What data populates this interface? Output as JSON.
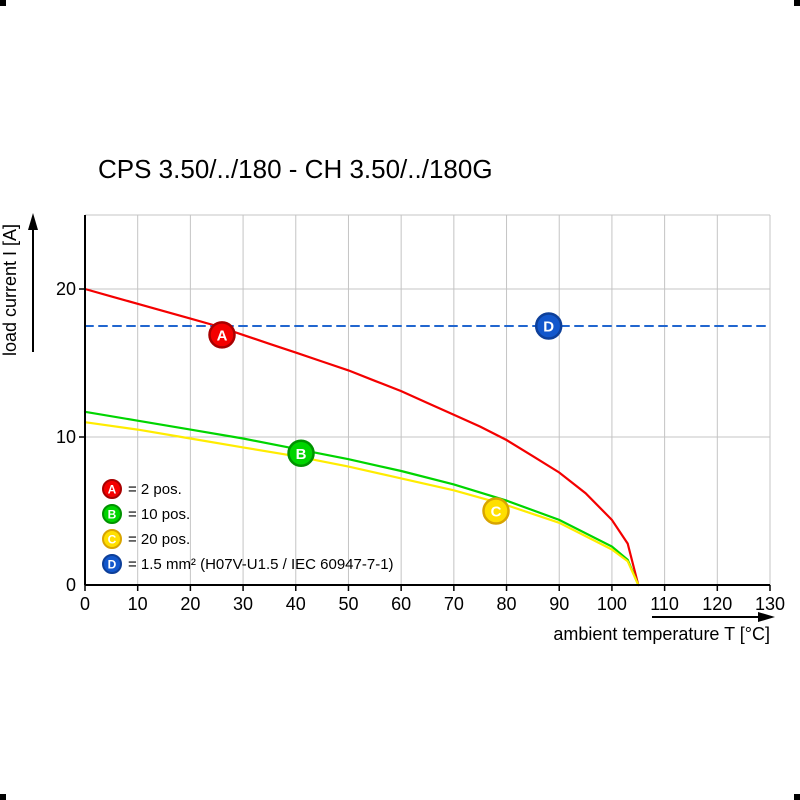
{
  "title": "CPS 3.50/../180 - CH 3.50/../180G",
  "chart_data": {
    "type": "line",
    "title": "CPS 3.50/../180 - CH 3.50/../180G",
    "xlabel": "ambient temperature T [°C]",
    "ylabel": "load current I [A]",
    "xlim": [
      0,
      130
    ],
    "ylim": [
      0,
      25
    ],
    "x_ticks": [
      0,
      10,
      20,
      30,
      40,
      50,
      60,
      70,
      80,
      90,
      100,
      110,
      120,
      130
    ],
    "y_ticks": [
      0,
      10,
      20
    ],
    "y_gridlines": [
      10,
      20,
      25
    ],
    "grid": true,
    "legend_position": "bottom-left-inside",
    "series": [
      {
        "name": "A",
        "label": "= 2 pos.",
        "color": "#f40000",
        "line_style": "solid",
        "marker_fill": "#f40000",
        "marker_stroke": "#a80000",
        "marker_at": {
          "x": 26,
          "y": 16.9
        },
        "points": [
          [
            0,
            20
          ],
          [
            5,
            19.5
          ],
          [
            10,
            19.0
          ],
          [
            15,
            18.5
          ],
          [
            20,
            18.0
          ],
          [
            25,
            17.5
          ],
          [
            30,
            16.9
          ],
          [
            35,
            16.3
          ],
          [
            40,
            15.7
          ],
          [
            45,
            15.1
          ],
          [
            50,
            14.5
          ],
          [
            55,
            13.8
          ],
          [
            60,
            13.1
          ],
          [
            65,
            12.3
          ],
          [
            70,
            11.5
          ],
          [
            75,
            10.7
          ],
          [
            80,
            9.8
          ],
          [
            85,
            8.7
          ],
          [
            90,
            7.6
          ],
          [
            95,
            6.2
          ],
          [
            100,
            4.4
          ],
          [
            103,
            2.8
          ],
          [
            105,
            0
          ]
        ]
      },
      {
        "name": "B",
        "label": "= 10 pos.",
        "color": "#00d500",
        "line_style": "solid",
        "marker_fill": "#00d500",
        "marker_stroke": "#009300",
        "marker_at": {
          "x": 41,
          "y": 8.9
        },
        "points": [
          [
            0,
            11.7
          ],
          [
            10,
            11.1
          ],
          [
            20,
            10.5
          ],
          [
            30,
            9.9
          ],
          [
            40,
            9.2
          ],
          [
            50,
            8.5
          ],
          [
            60,
            7.7
          ],
          [
            70,
            6.8
          ],
          [
            80,
            5.7
          ],
          [
            90,
            4.4
          ],
          [
            100,
            2.6
          ],
          [
            103,
            1.7
          ],
          [
            105,
            0
          ]
        ]
      },
      {
        "name": "C",
        "label": "= 20 pos.",
        "color": "#ffec00",
        "line_style": "solid",
        "marker_fill": "#ffdf00",
        "marker_stroke": "#d8a400",
        "marker_at": {
          "x": 78,
          "y": 5.0
        },
        "points": [
          [
            0,
            11.0
          ],
          [
            10,
            10.5
          ],
          [
            20,
            9.9
          ],
          [
            30,
            9.3
          ],
          [
            40,
            8.7
          ],
          [
            50,
            8.0
          ],
          [
            60,
            7.2
          ],
          [
            70,
            6.4
          ],
          [
            80,
            5.4
          ],
          [
            90,
            4.2
          ],
          [
            100,
            2.4
          ],
          [
            103,
            1.6
          ],
          [
            105,
            0
          ]
        ]
      },
      {
        "name": "D",
        "label": "= 1.5 mm² (H07V-U1.5 / IEC 60947-7-1)",
        "color": "#2166cf",
        "line_style": "dashed",
        "marker_fill": "#1257cc",
        "marker_stroke": "#0d3f99",
        "marker_at": {
          "x": 88,
          "y": 17.5
        },
        "points": [
          [
            0,
            17.5
          ],
          [
            130,
            17.5
          ]
        ]
      }
    ]
  }
}
